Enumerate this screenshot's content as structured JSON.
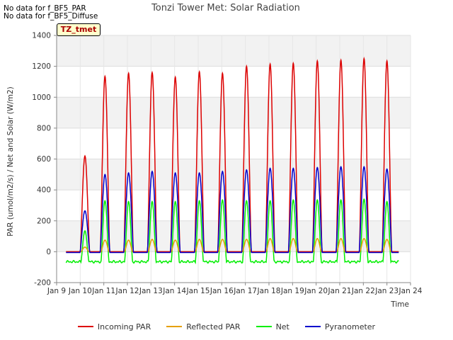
{
  "header": {
    "nodata1": "No data for f_BF5_PAR",
    "nodata2": "No data for f_BF5_Diffuse",
    "tag": "TZ_tmet"
  },
  "chart_data": {
    "type": "line",
    "title": "Tonzi Tower Met: Solar Radiation",
    "xlabel": "Time",
    "ylabel": "PAR (umol/m2/s) / Net and Solar (W/m2)",
    "xlim": [
      9,
      24
    ],
    "ylim": [
      -200,
      1400
    ],
    "xticks": [
      9,
      10,
      11,
      12,
      13,
      14,
      15,
      16,
      17,
      18,
      19,
      20,
      21,
      22,
      23,
      24
    ],
    "xtick_labels": [
      "Jan 9",
      "Jan 10",
      "Jan 11",
      "Jan 12",
      "Jan 13",
      "Jan 14",
      "Jan 15",
      "Jan 16",
      "Jan 17",
      "Jan 18",
      "Jan 19",
      "Jan 20",
      "Jan 21",
      "Jan 22",
      "Jan 23",
      "Jan 24"
    ],
    "yticks": [
      -200,
      0,
      200,
      400,
      600,
      800,
      1000,
      1200,
      1400
    ],
    "data_range": [
      9.4,
      23.5
    ],
    "day_centers": [
      10.2,
      11.05,
      12.05,
      13.05,
      14.03,
      15.05,
      16.03,
      17.05,
      18.05,
      19.03,
      20.05,
      21.05,
      22.03,
      23.0
    ],
    "series": [
      {
        "name": "Incoming PAR",
        "color": "#dd0000",
        "night": 0,
        "halfwidth": 0.2,
        "peaks": [
          620,
          1135,
          1155,
          1160,
          1130,
          1165,
          1155,
          1200,
          1215,
          1220,
          1235,
          1240,
          1250,
          1235
        ]
      },
      {
        "name": "Reflected PAR",
        "color": "#e6a000",
        "night": 0,
        "halfwidth": 0.17,
        "peaks": [
          30,
          75,
          75,
          80,
          75,
          80,
          80,
          80,
          85,
          85,
          85,
          85,
          85,
          80
        ]
      },
      {
        "name": "Net",
        "color": "#00ee00",
        "night": -65,
        "halfwidth": 0.17,
        "peaks": [
          135,
          330,
          325,
          325,
          325,
          330,
          335,
          330,
          330,
          335,
          335,
          335,
          340,
          325
        ]
      },
      {
        "name": "Pyranometer",
        "color": "#0000cc",
        "night": -5,
        "halfwidth": 0.21,
        "peaks": [
          265,
          500,
          510,
          520,
          510,
          510,
          520,
          530,
          540,
          540,
          545,
          550,
          550,
          535
        ]
      }
    ]
  }
}
